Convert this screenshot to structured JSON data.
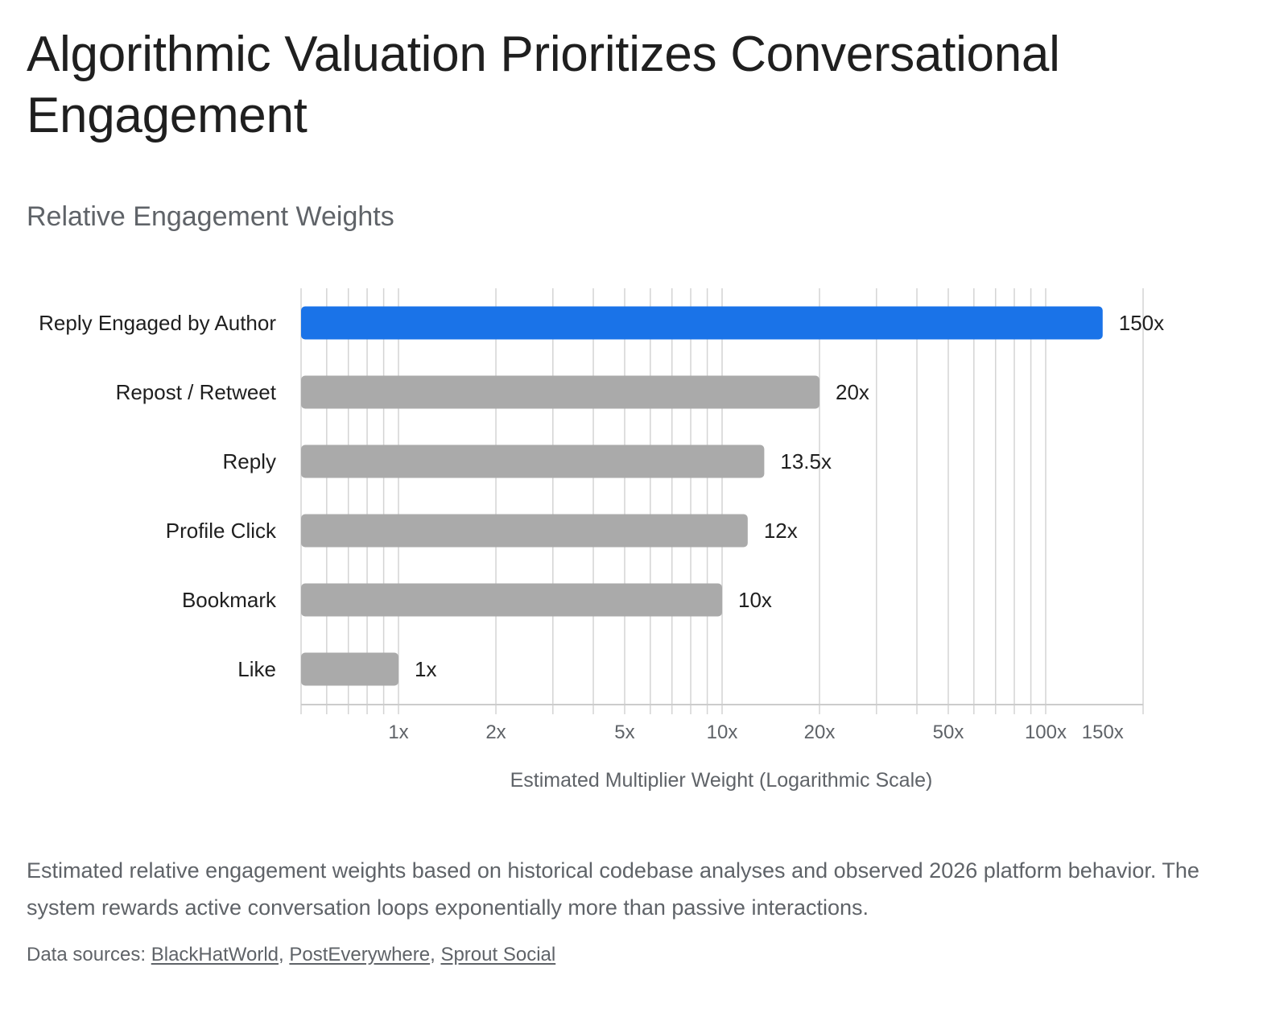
{
  "header": {
    "title": "Algorithmic Valuation Prioritizes Conversational Engagement",
    "subtitle": "Relative Engagement Weights"
  },
  "chart_data": {
    "type": "bar",
    "orientation": "horizontal",
    "x_scale": "log",
    "xlabel": "Estimated Multiplier Weight (Logarithmic Scale)",
    "ylabel": "",
    "xlim": [
      0.5,
      200
    ],
    "grid": true,
    "categories": [
      "Reply Engaged by Author",
      "Repost / Retweet",
      "Reply",
      "Profile Click",
      "Bookmark",
      "Like"
    ],
    "values": [
      150,
      20,
      13.5,
      12,
      10,
      1
    ],
    "value_labels": [
      "150x",
      "20x",
      "13.5x",
      "12x",
      "10x",
      "1x"
    ],
    "tick_values": [
      1,
      2,
      5,
      10,
      20,
      50,
      100,
      150
    ],
    "tick_labels": [
      "1x",
      "2x",
      "5x",
      "10x",
      "20x",
      "50x",
      "100x",
      "150x"
    ],
    "highlight_category": "Reply Engaged by Author",
    "colors": {
      "highlight": "#1a73e8",
      "default": "#aaaaaa",
      "grid": "#d4d4d4",
      "axis": "#cccccc"
    }
  },
  "footer": {
    "caption": "Estimated relative engagement weights based on historical codebase analyses and observed 2026 platform behavior. The system rewards active conversation loops exponentially more than passive interactions.",
    "sources_prefix": "Data sources: ",
    "sources": [
      "BlackHatWorld",
      "PostEverywhere",
      "Sprout Social"
    ],
    "separator": ", "
  }
}
